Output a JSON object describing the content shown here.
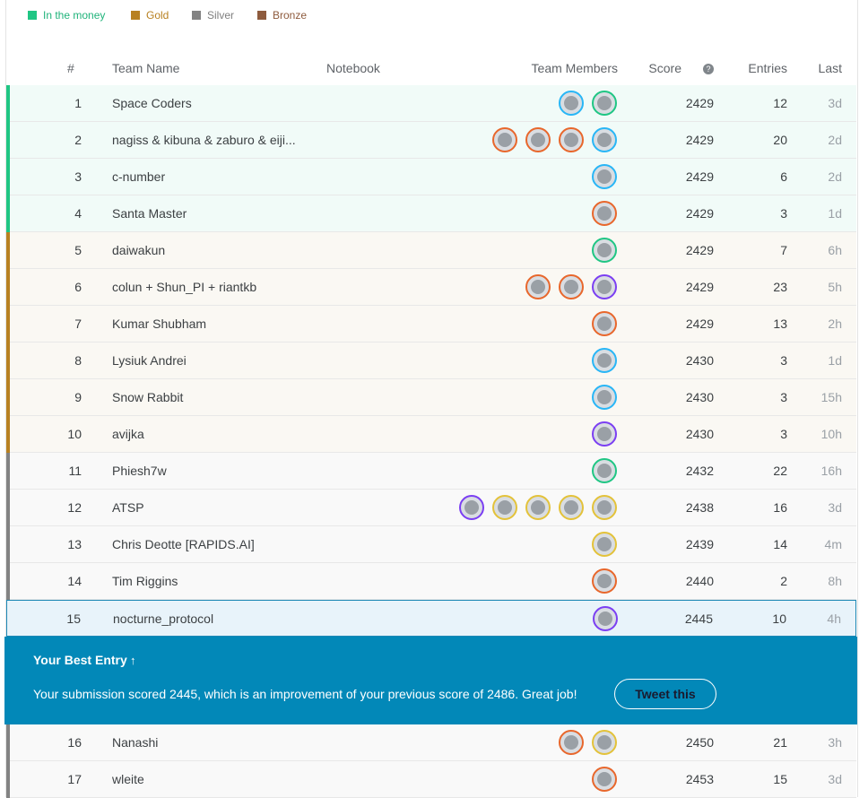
{
  "legend": [
    "In the money",
    "Gold",
    "Silver",
    "Bronze"
  ],
  "headers": {
    "rank": "#",
    "team": "Team Name",
    "notebook": "Notebook",
    "members": "Team Members",
    "score": "Score",
    "entries": "Entries",
    "last": "Last"
  },
  "rows": [
    {
      "rank": 1,
      "team": "Space Coders",
      "score": 2429,
      "entries": 12,
      "last": "3d"
    },
    {
      "rank": 2,
      "team": "nagiss & kibuna & zaburo & eiji...",
      "score": 2429,
      "entries": 20,
      "last": "2d"
    },
    {
      "rank": 3,
      "team": "c-number",
      "score": 2429,
      "entries": 6,
      "last": "2d"
    },
    {
      "rank": 4,
      "team": "Santa Master",
      "score": 2429,
      "entries": 3,
      "last": "1d"
    },
    {
      "rank": 5,
      "team": "daiwakun",
      "score": 2429,
      "entries": 7,
      "last": "6h"
    },
    {
      "rank": 6,
      "team": "colun + Shun_PI + riantkb",
      "score": 2429,
      "entries": 23,
      "last": "5h"
    },
    {
      "rank": 7,
      "team": "Kumar Shubham",
      "score": 2429,
      "entries": 13,
      "last": "2h"
    },
    {
      "rank": 8,
      "team": "Lysiuk Andrei",
      "score": 2430,
      "entries": 3,
      "last": "1d"
    },
    {
      "rank": 9,
      "team": "Snow Rabbit",
      "score": 2430,
      "entries": 3,
      "last": "15h"
    },
    {
      "rank": 10,
      "team": "avijka",
      "score": 2430,
      "entries": 3,
      "last": "10h"
    },
    {
      "rank": 11,
      "team": "Phiesh7w",
      "score": 2432,
      "entries": 22,
      "last": "16h"
    },
    {
      "rank": 12,
      "team": "ATSP",
      "score": 2438,
      "entries": 16,
      "last": "3d"
    },
    {
      "rank": 13,
      "team": "Chris Deotte [RAPIDS.AI]",
      "score": 2439,
      "entries": 14,
      "last": "4m"
    },
    {
      "rank": 14,
      "team": "Tim Riggins",
      "score": 2440,
      "entries": 2,
      "last": "8h"
    },
    {
      "rank": 15,
      "team": "nocturne_protocol",
      "score": 2445,
      "entries": 10,
      "last": "4h"
    },
    {
      "rank": 16,
      "team": "Nanashi",
      "score": 2450,
      "entries": 21,
      "last": "3h"
    },
    {
      "rank": 17,
      "team": "wleite",
      "score": 2453,
      "entries": 15,
      "last": "3d"
    }
  ],
  "banner": {
    "title": "Your Best Entry",
    "message": "Your submission scored 2445, which is an improvement of your previous score of 2486. Great job!",
    "button": "Tweet this"
  }
}
